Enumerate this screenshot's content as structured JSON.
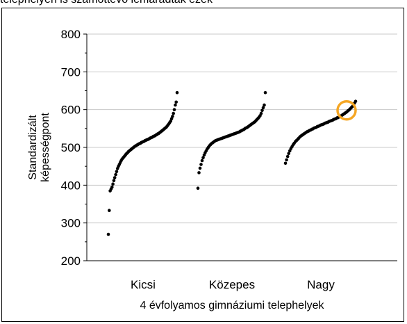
{
  "header": {
    "caption": "telephelyen is számottevő lemaradtak ezek"
  },
  "chart_data": {
    "type": "scatter",
    "ylabel_lines": [
      "Standardizált",
      "képességpont"
    ],
    "xlabel": "4 évfolyamos gimnáziumi telephelyek",
    "ylim": [
      200,
      800
    ],
    "yticks": [
      200,
      300,
      400,
      500,
      600,
      700,
      800
    ],
    "grid": "horizontal",
    "categories": [
      "Kicsi",
      "Közepes",
      "Nagy"
    ],
    "highlight": {
      "category": "Nagy",
      "value": 598,
      "color": "#F5A623"
    },
    "series": [
      {
        "category": "Kicsi",
        "values": [
          270,
          333,
          385,
          390,
          395,
          403,
          412,
          420,
          428,
          436,
          444,
          450,
          455,
          460,
          465,
          469,
          472,
          475,
          478,
          481,
          484,
          486,
          489,
          491,
          493,
          495,
          497,
          499,
          501,
          503,
          504,
          506,
          507,
          509,
          510,
          511,
          513,
          514,
          515,
          516,
          518,
          519,
          520,
          521,
          522,
          524,
          525,
          526,
          527,
          529,
          530,
          531,
          533,
          534,
          536,
          537,
          539,
          541,
          543,
          545,
          547,
          549,
          551,
          553,
          556,
          559,
          562,
          566,
          570,
          576,
          582,
          590,
          600,
          612,
          620,
          645
        ]
      },
      {
        "category": "Közepes",
        "values": [
          392,
          433,
          445,
          455,
          465,
          473,
          480,
          486,
          491,
          496,
          500,
          504,
          507,
          510,
          512,
          514,
          516,
          518,
          519,
          520,
          521,
          522,
          523,
          524,
          525,
          526,
          527,
          528,
          529,
          530,
          531,
          532,
          533,
          534,
          535,
          536,
          537,
          538,
          539,
          540,
          541,
          543,
          544,
          546,
          547,
          549,
          551,
          552,
          554,
          556,
          558,
          560,
          562,
          564,
          566,
          568,
          571,
          574,
          577,
          580,
          584,
          590,
          598,
          605,
          612,
          645
        ]
      },
      {
        "category": "Nagy",
        "values": [
          458,
          467,
          476,
          484,
          491,
          497,
          502,
          507,
          511,
          515,
          518,
          521,
          524,
          527,
          530,
          532,
          534,
          536,
          538,
          540,
          542,
          543,
          545,
          546,
          548,
          549,
          551,
          552,
          553,
          555,
          556,
          557,
          559,
          560,
          561,
          562,
          564,
          565,
          566,
          567,
          569,
          570,
          571,
          572,
          574,
          575,
          576,
          578,
          579,
          581,
          582,
          584,
          586,
          588,
          590,
          592,
          594,
          597,
          599,
          602,
          605,
          608,
          612,
          617,
          622
        ]
      }
    ]
  }
}
